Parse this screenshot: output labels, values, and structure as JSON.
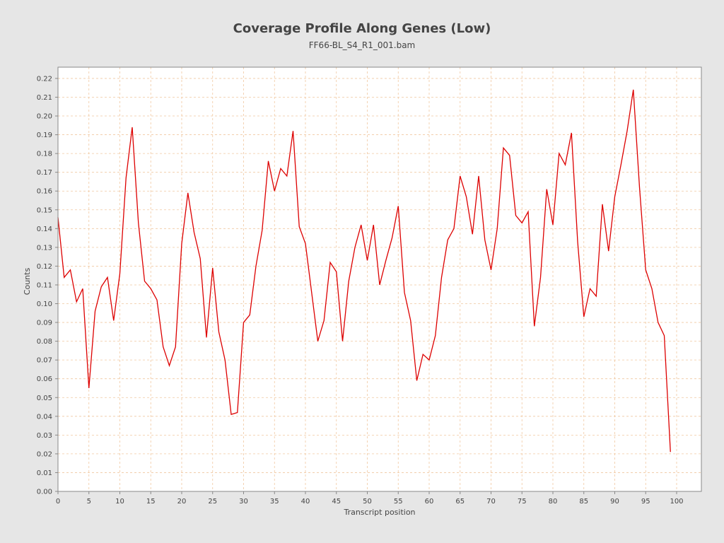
{
  "chart_data": {
    "type": "line",
    "title": "Coverage Profile Along Genes (Low)",
    "subtitle": "FF66-BL_S4_R1_001.bam",
    "xlabel": "Transcript position",
    "ylabel": "Counts",
    "xlim": [
      0,
      104
    ],
    "ylim": [
      0,
      0.226
    ],
    "grid": true,
    "colors": {
      "background": "#e6e6e6",
      "plot_background": "#ffffff",
      "grid": "#f0c8a0",
      "line": "#dd0000",
      "axis": "#888888"
    },
    "x_ticks": [
      "0",
      "5",
      "10",
      "15",
      "20",
      "25",
      "30",
      "35",
      "40",
      "45",
      "50",
      "55",
      "60",
      "65",
      "70",
      "75",
      "80",
      "85",
      "90",
      "95",
      "100"
    ],
    "y_ticks": [
      "0.00",
      "0.01",
      "0.02",
      "0.03",
      "0.04",
      "0.05",
      "0.06",
      "0.07",
      "0.08",
      "0.09",
      "0.10",
      "0.11",
      "0.12",
      "0.13",
      "0.14",
      "0.15",
      "0.16",
      "0.17",
      "0.18",
      "0.19",
      "0.20",
      "0.21",
      "0.22"
    ],
    "series": [
      {
        "name": "FF66-BL_S4_R1_001.bam",
        "x": [
          0,
          1,
          2,
          3,
          4,
          5,
          6,
          7,
          8,
          9,
          10,
          11,
          12,
          13,
          14,
          15,
          16,
          17,
          18,
          19,
          20,
          21,
          22,
          23,
          24,
          25,
          26,
          27,
          28,
          29,
          30,
          31,
          32,
          33,
          34,
          35,
          36,
          37,
          38,
          39,
          40,
          41,
          42,
          43,
          44,
          45,
          46,
          47,
          48,
          49,
          50,
          51,
          52,
          53,
          54,
          55,
          56,
          57,
          58,
          59,
          60,
          61,
          62,
          63,
          64,
          65,
          66,
          67,
          68,
          69,
          70,
          71,
          72,
          73,
          74,
          75,
          76,
          77,
          78,
          79,
          80,
          81,
          82,
          83,
          84,
          85,
          86,
          87,
          88,
          89,
          90,
          91,
          92,
          93,
          94,
          95,
          96,
          97,
          98,
          99
        ],
        "values": [
          0.146,
          0.114,
          0.118,
          0.101,
          0.108,
          0.055,
          0.096,
          0.109,
          0.114,
          0.091,
          0.116,
          0.167,
          0.194,
          0.143,
          0.112,
          0.108,
          0.102,
          0.077,
          0.067,
          0.077,
          0.132,
          0.159,
          0.138,
          0.124,
          0.082,
          0.119,
          0.085,
          0.07,
          0.041,
          0.042,
          0.09,
          0.094,
          0.12,
          0.139,
          0.176,
          0.16,
          0.172,
          0.168,
          0.192,
          0.141,
          0.132,
          0.106,
          0.08,
          0.091,
          0.122,
          0.117,
          0.08,
          0.112,
          0.13,
          0.142,
          0.123,
          0.142,
          0.11,
          0.123,
          0.135,
          0.152,
          0.106,
          0.091,
          0.059,
          0.073,
          0.07,
          0.083,
          0.114,
          0.134,
          0.14,
          0.168,
          0.157,
          0.137,
          0.168,
          0.134,
          0.118,
          0.14,
          0.183,
          0.179,
          0.147,
          0.143,
          0.149,
          0.088,
          0.114,
          0.161,
          0.142,
          0.18,
          0.174,
          0.191,
          0.133,
          0.093,
          0.108,
          0.104,
          0.153,
          0.128,
          0.157,
          0.174,
          0.192,
          0.214,
          0.162,
          0.118,
          0.108,
          0.09,
          0.083,
          0.021
        ]
      }
    ]
  }
}
